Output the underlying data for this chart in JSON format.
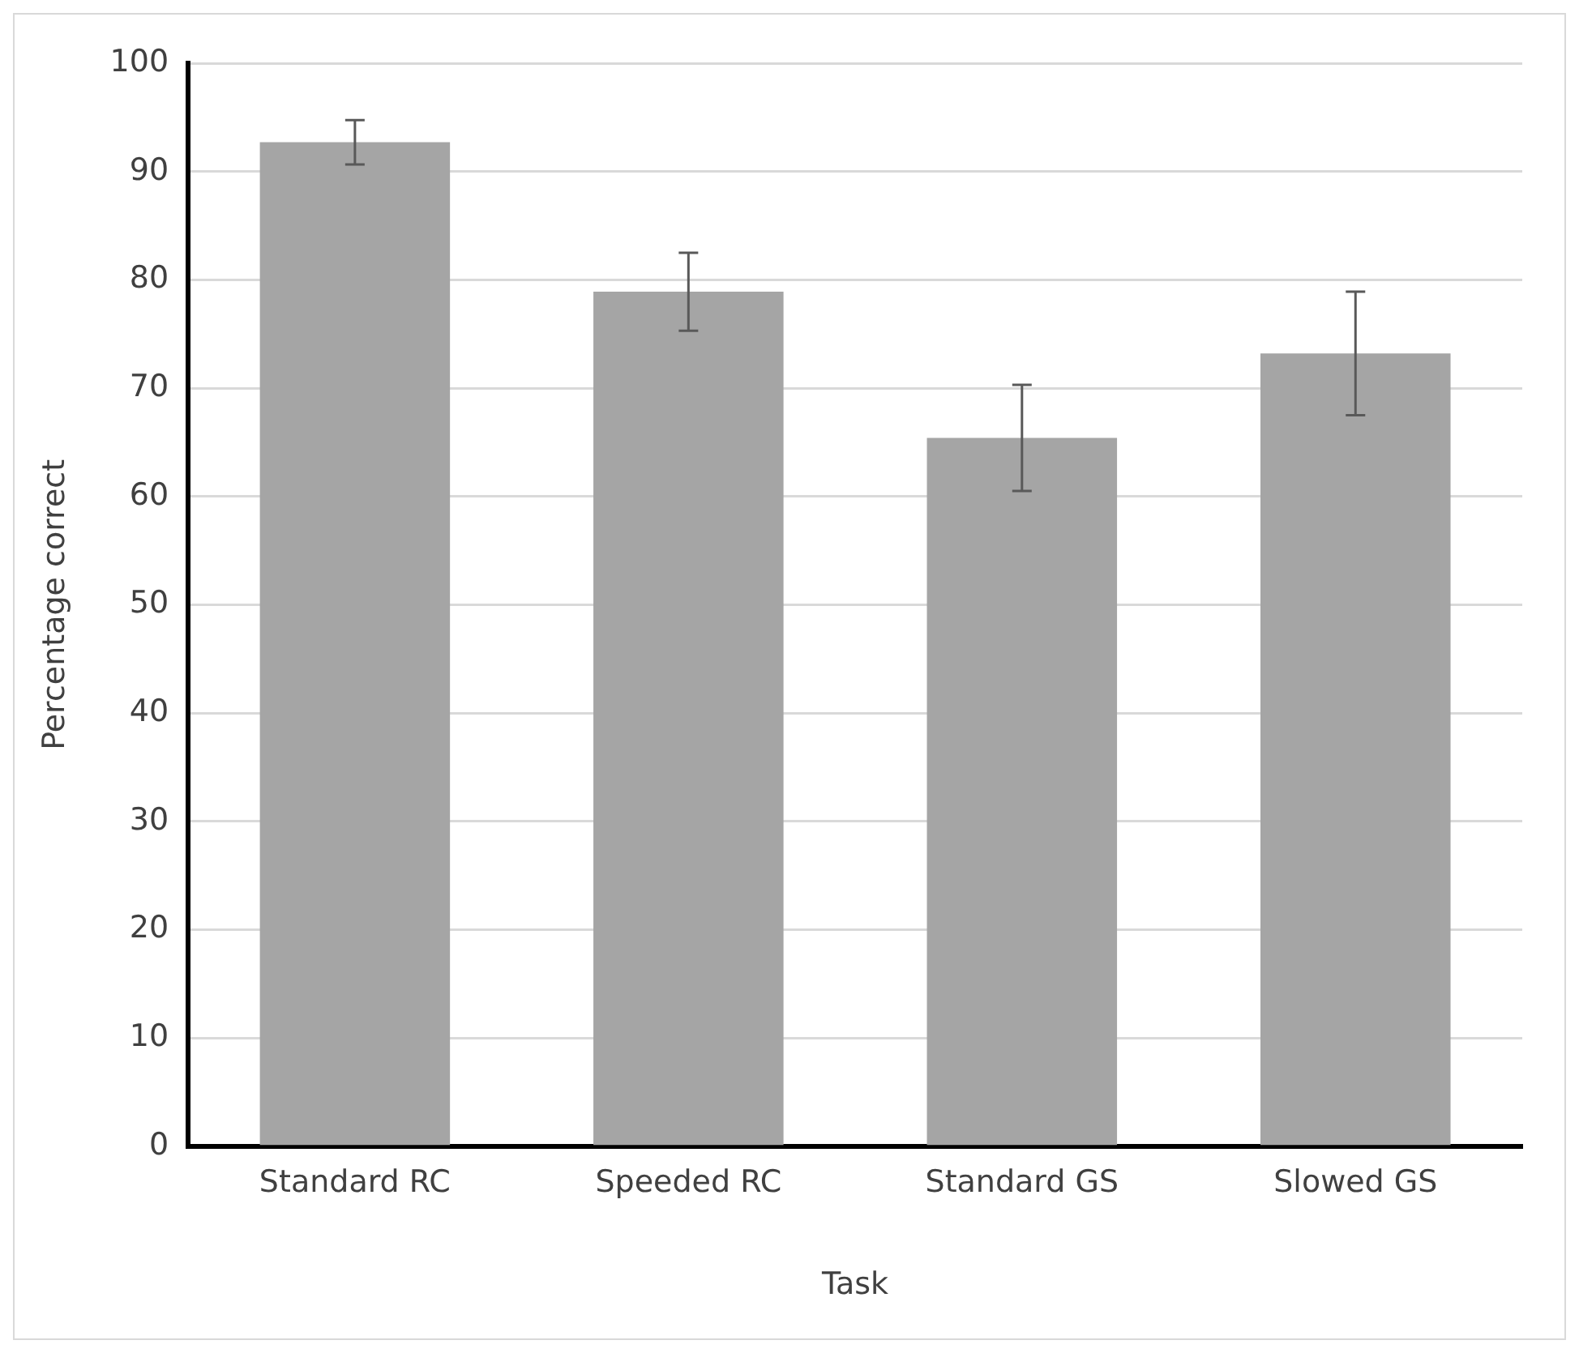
{
  "chart_data": {
    "type": "bar",
    "xlabel": "Task",
    "ylabel": "Percentage correct",
    "categories": [
      "Standard RC",
      "Speeded RC",
      "Standard GS",
      "Slowed GS"
    ],
    "values": [
      92.7,
      78.9,
      65.4,
      73.2
    ],
    "errors": [
      2.05,
      3.6,
      4.9,
      5.7
    ],
    "color": "#a5a5a5",
    "ylim": [
      0,
      100
    ],
    "yticks": [
      0,
      10,
      20,
      30,
      40,
      50,
      60,
      70,
      80,
      90,
      100
    ],
    "grid": "y"
  }
}
